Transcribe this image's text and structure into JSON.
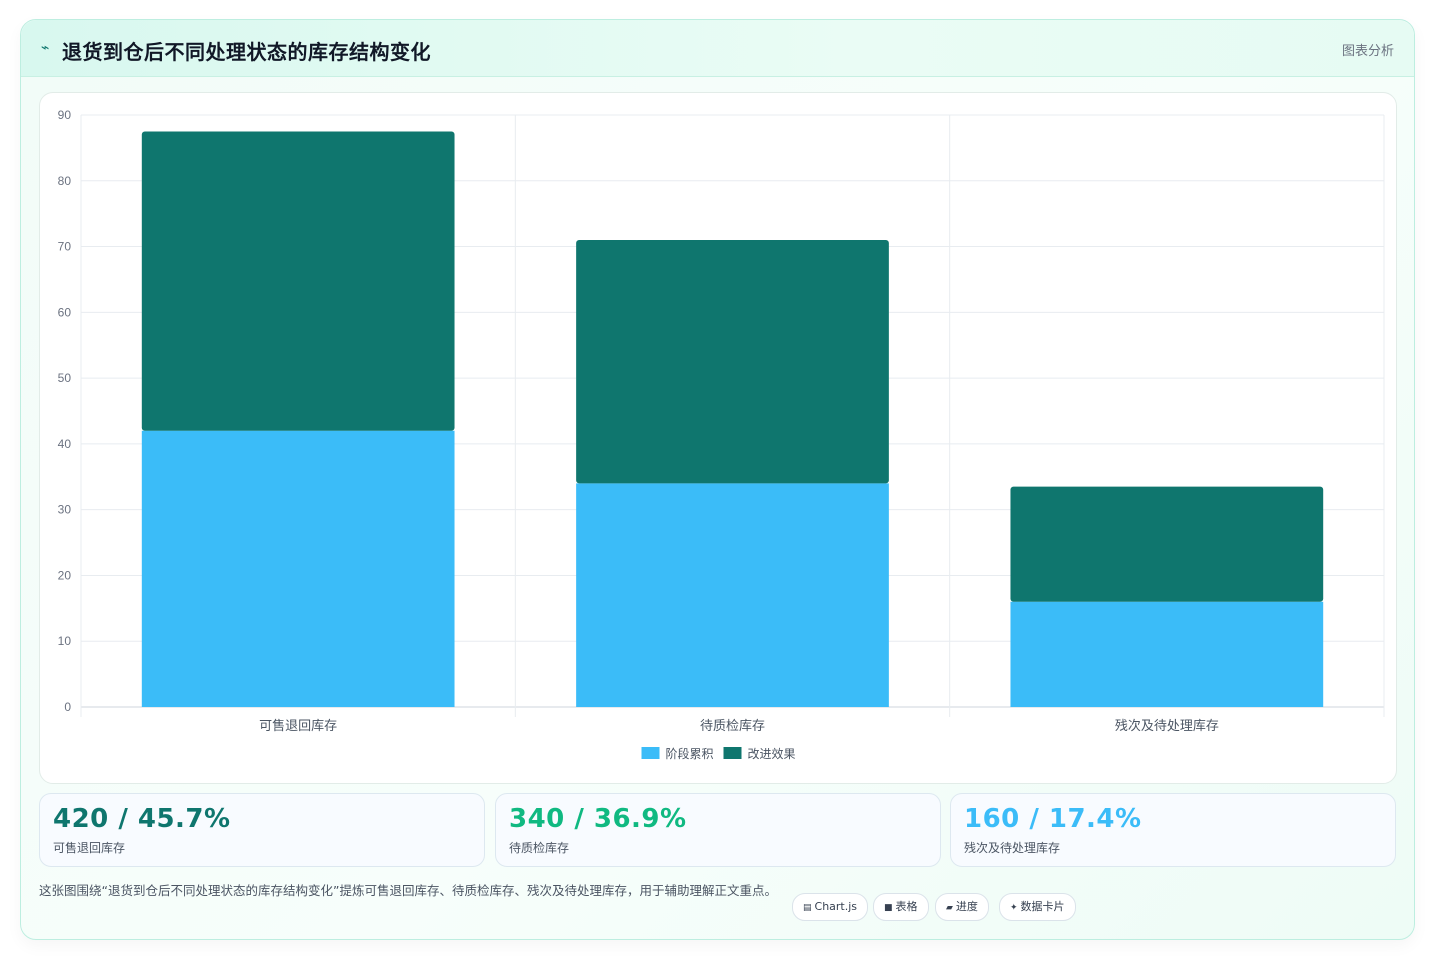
{
  "header": {
    "icon": "chart-line-icon",
    "title": "退货到仓后不同处理状态的库存结构变化",
    "right_label": "图表分析"
  },
  "chart_data": {
    "type": "bar",
    "stacked": true,
    "categories": [
      "可售退回库存",
      "待质检库存",
      "残次及待处理库存"
    ],
    "series": [
      {
        "name": "阶段累积",
        "color": "#3bbcf8",
        "values": [
          42,
          34,
          16
        ]
      },
      {
        "name": "改进效果",
        "color": "#0f766e",
        "values": [
          45.5,
          37,
          17.5
        ]
      }
    ],
    "ylim": [
      0,
      90
    ],
    "yticks": [
      0,
      10,
      20,
      30,
      40,
      50,
      60,
      70,
      80,
      90
    ],
    "grid": true,
    "legend": "bottom"
  },
  "stats": [
    {
      "value": "420 / 45.7%",
      "label": "可售退回库存",
      "color": "#0f766e"
    },
    {
      "value": "340 / 36.9%",
      "label": "待质检库存",
      "color": "#10b981"
    },
    {
      "value": "160 / 17.4%",
      "label": "残次及待处理库存",
      "color": "#3bbcf8"
    }
  ],
  "description": "这张图围绕“退货到仓后不同处理状态的库存结构变化”提炼可售退回库存、待质检库存、残次及待处理库存，用于辅助理解正文重点。",
  "tags": [
    {
      "icon": "▤",
      "label": "Chart.js"
    },
    {
      "icon": "■",
      "label": "表格"
    },
    {
      "icon": "▰",
      "label": "进度"
    },
    {
      "icon": "✦",
      "label": "数据卡片"
    }
  ]
}
